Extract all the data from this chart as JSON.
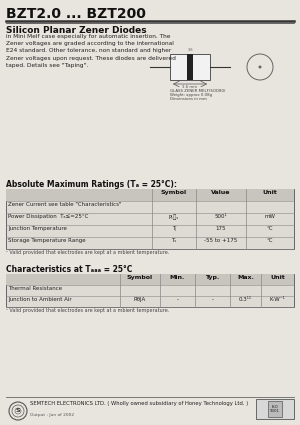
{
  "title": "BZT2.0 ... BZT200",
  "subtitle": "Silicon Planar Zener Diodes",
  "description": "in Mini Melf case especially for automatic insertion. The\nZener voltages are graded according to the international\nE24 standard. Other tolerance, non standard and higher\nZener voltages upon request. These diodes are delivered\ntaped. Details see \"Taping\".",
  "bg_color": "#e8e4de",
  "table_bg": "#dedad4",
  "header_bg": "#c8c4be",
  "abs_max_title": "Absolute Maximum Ratings (Tₐ = 25°C):",
  "abs_max_headers": [
    "Symbol",
    "Value",
    "Unit"
  ],
  "abs_note": "¹ Valid provided that electrodes are kept at a mbient temperature.",
  "char_title": "Characteristics at Tₐₐₐ = 25°C",
  "char_headers": [
    "Symbol",
    "Min.",
    "Typ.",
    "Max.",
    "Unit"
  ],
  "char_note": "¹ Valid provided that electrodes are kept at a mbient temperature.",
  "footer_text": "SEMTECH ELECTRONICS LTD. ( Wholly owned subsidiary of Honey Technology Ltd. )",
  "footer_sub": "Output : Jun of 2002"
}
